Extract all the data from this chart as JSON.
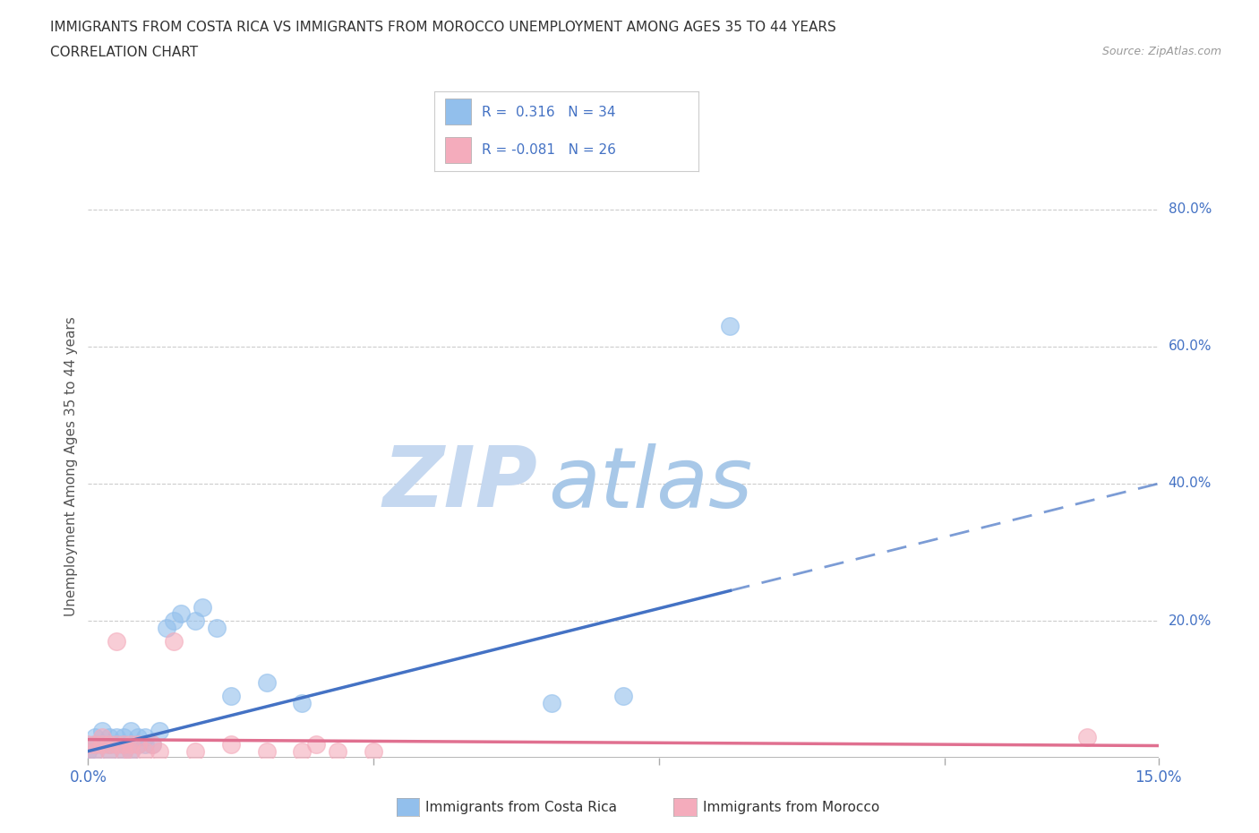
{
  "title_line1": "IMMIGRANTS FROM COSTA RICA VS IMMIGRANTS FROM MOROCCO UNEMPLOYMENT AMONG AGES 35 TO 44 YEARS",
  "title_line2": "CORRELATION CHART",
  "source_text": "Source: ZipAtlas.com",
  "ylabel": "Unemployment Among Ages 35 to 44 years",
  "xlim": [
    0.0,
    0.15
  ],
  "ylim": [
    0.0,
    0.85
  ],
  "ytick_values_right": [
    0.8,
    0.6,
    0.4,
    0.2
  ],
  "ytick_labels_right": [
    "80.0%",
    "60.0%",
    "40.0%",
    "20.0%"
  ],
  "costa_rica_color": "#92BFEC",
  "morocco_color": "#F4ACBC",
  "costa_rica_line_color": "#4472C4",
  "morocco_line_color": "#E07090",
  "costa_rica_r": 0.316,
  "costa_rica_n": 34,
  "morocco_r": -0.081,
  "morocco_n": 26,
  "legend_label_cr": "Immigrants from Costa Rica",
  "legend_label_mo": "Immigrants from Morocco",
  "watermark_zip": "ZIP",
  "watermark_atlas": "atlas",
  "accent_color": "#4472C4",
  "cr_x": [
    0.0,
    0.001,
    0.001,
    0.001,
    0.002,
    0.002,
    0.003,
    0.003,
    0.003,
    0.004,
    0.004,
    0.005,
    0.005,
    0.005,
    0.006,
    0.006,
    0.007,
    0.007,
    0.008,
    0.008,
    0.009,
    0.01,
    0.011,
    0.012,
    0.013,
    0.015,
    0.016,
    0.018,
    0.02,
    0.025,
    0.03,
    0.065,
    0.075,
    0.09
  ],
  "cr_y": [
    0.01,
    0.02,
    0.03,
    0.01,
    0.02,
    0.04,
    0.02,
    0.03,
    0.01,
    0.03,
    0.02,
    0.01,
    0.03,
    0.02,
    0.01,
    0.04,
    0.02,
    0.03,
    0.03,
    0.02,
    0.02,
    0.04,
    0.19,
    0.2,
    0.21,
    0.2,
    0.22,
    0.19,
    0.09,
    0.11,
    0.08,
    0.08,
    0.09,
    0.63
  ],
  "mo_x": [
    0.0,
    0.001,
    0.001,
    0.002,
    0.002,
    0.003,
    0.003,
    0.004,
    0.004,
    0.005,
    0.005,
    0.006,
    0.006,
    0.007,
    0.008,
    0.009,
    0.01,
    0.012,
    0.015,
    0.02,
    0.025,
    0.03,
    0.032,
    0.035,
    0.04,
    0.14
  ],
  "mo_y": [
    0.02,
    0.01,
    0.02,
    0.02,
    0.03,
    0.01,
    0.02,
    0.02,
    0.17,
    0.01,
    0.02,
    0.02,
    0.01,
    0.02,
    0.01,
    0.02,
    0.01,
    0.17,
    0.01,
    0.02,
    0.01,
    0.01,
    0.02,
    0.01,
    0.01,
    0.03
  ],
  "cr_trend_x0": 0.0,
  "cr_trend_y0": 0.01,
  "cr_trend_x1": 0.15,
  "cr_trend_y1": 0.4,
  "mo_trend_x0": 0.0,
  "mo_trend_y0": 0.027,
  "mo_trend_x1": 0.15,
  "mo_trend_y1": 0.018,
  "grid_color": "#CCCCCC",
  "background_color": "#FFFFFF"
}
